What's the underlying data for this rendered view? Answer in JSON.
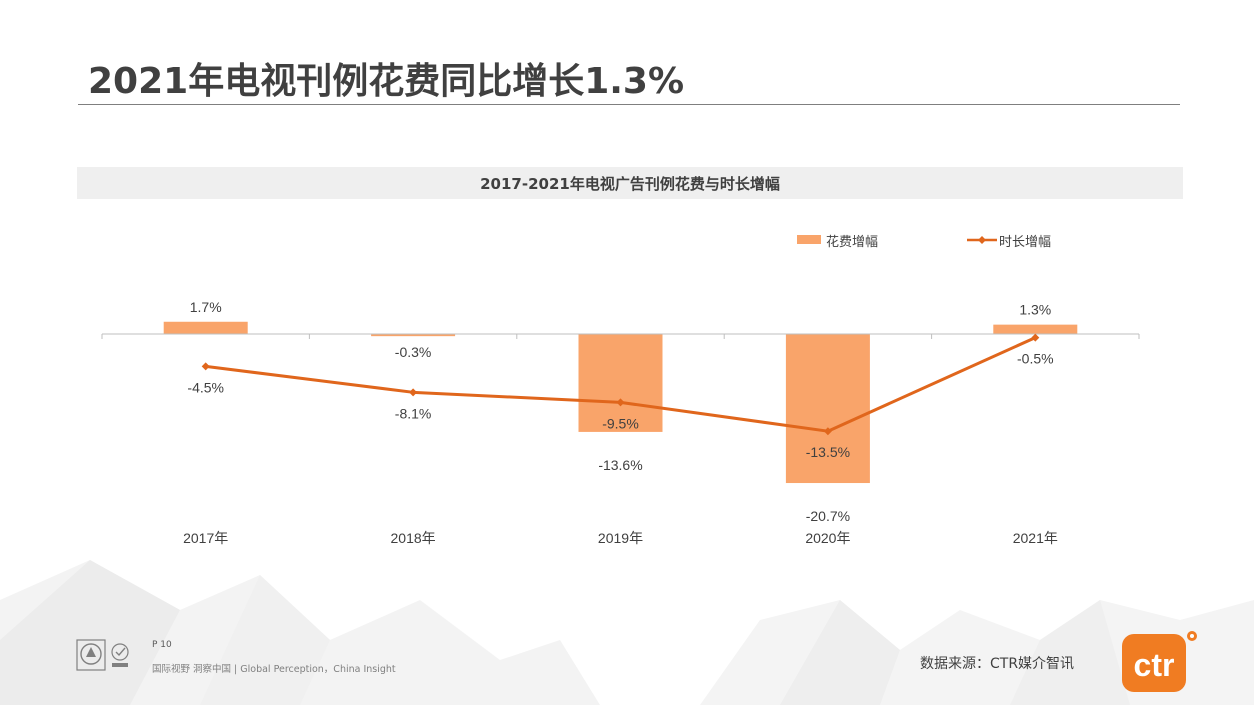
{
  "page": {
    "title": "2021年电视刊例花费同比增长1.3%",
    "page_number": "P 10",
    "slogan": "国际视野 洞察中国 |  Global Perception，China Insight",
    "source": "数据来源：CTR媒介智讯",
    "logo_text": "ctr"
  },
  "colors": {
    "bar": "#F9A46A",
    "line": "#E0661C",
    "axis": "#bfbfbf",
    "text": "#404040",
    "logo": "#F07C22"
  },
  "chart_data": {
    "type": "bar",
    "title": "2017-2021年电视广告刊例花费与时长增幅",
    "categories": [
      "2017年",
      "2018年",
      "2019年",
      "2020年",
      "2021年"
    ],
    "series": [
      {
        "name": "花费增幅",
        "type": "bar",
        "values": [
          1.7,
          -0.3,
          -13.6,
          -20.7,
          1.3
        ],
        "labels": [
          "1.7%",
          "-0.3%",
          "-13.6%",
          "-20.7%",
          "1.3%"
        ]
      },
      {
        "name": "时长增幅",
        "type": "line",
        "values": [
          -4.5,
          -8.1,
          -9.5,
          -13.5,
          -0.5
        ],
        "labels": [
          "-4.5%",
          "-8.1%",
          "-9.5%",
          "-13.5%",
          "-0.5%"
        ]
      }
    ],
    "legend": "top-right",
    "grid": false
  }
}
